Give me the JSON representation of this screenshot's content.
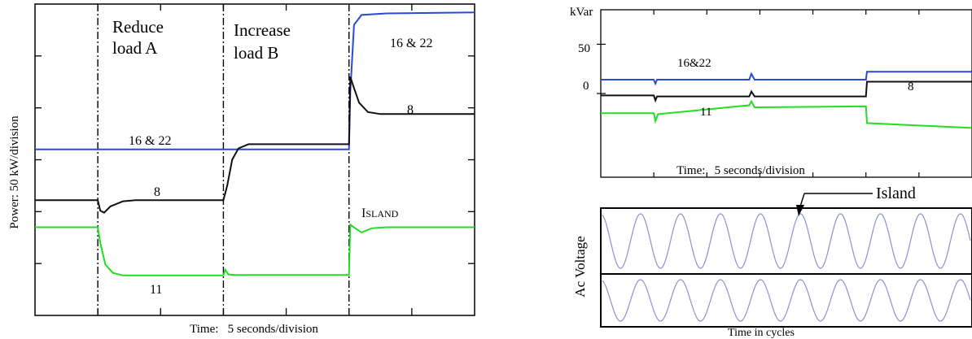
{
  "colors": {
    "blue": "#2a49d8",
    "black": "#111111",
    "green": "#22dd22",
    "wave": "#8f8fd6",
    "axis": "#000000"
  },
  "chart_data": [
    {
      "type": "line",
      "title": "",
      "xlabel": "Time:   5 seconds/division",
      "ylabel": "Power: 50 kW/division",
      "grid": false,
      "xlim": [
        0,
        35
      ],
      "ylim": [
        0,
        6
      ],
      "event_lines": [
        {
          "x": 5,
          "label_lines": [
            "Reduce",
            "load A"
          ]
        },
        {
          "x": 15,
          "label_lines": [
            "Increase",
            "load B"
          ]
        },
        {
          "x": 25,
          "label_lines": []
        }
      ],
      "annotations": [
        {
          "text": "ISLAND",
          "cap": "I",
          "rest": "SLAND"
        }
      ],
      "series": [
        {
          "name": "16 & 22",
          "color": "blue",
          "label_before": "16 & 22",
          "label_after": "16 & 22",
          "points": [
            [
              0,
              3.2
            ],
            [
              25,
              3.2
            ],
            [
              25.1,
              4.3
            ],
            [
              25.4,
              5.6
            ],
            [
              26,
              5.79
            ],
            [
              28,
              5.82
            ],
            [
              35,
              5.84
            ]
          ]
        },
        {
          "name": "8",
          "color": "black",
          "label": "8",
          "points": [
            [
              0,
              2.22
            ],
            [
              5,
              2.22
            ],
            [
              5.2,
              2.02
            ],
            [
              5.5,
              1.98
            ],
            [
              6,
              2.1
            ],
            [
              7,
              2.2
            ],
            [
              8,
              2.22
            ],
            [
              15,
              2.22
            ],
            [
              15.3,
              2.5
            ],
            [
              15.7,
              3.0
            ],
            [
              16.2,
              3.22
            ],
            [
              17,
              3.3
            ],
            [
              25,
              3.3
            ],
            [
              25.1,
              4.6
            ],
            [
              25.4,
              4.38
            ],
            [
              25.8,
              4.1
            ],
            [
              26.5,
              3.92
            ],
            [
              27.5,
              3.88
            ],
            [
              35,
              3.88
            ]
          ]
        },
        {
          "name": "11",
          "color": "green",
          "label": "11",
          "points": [
            [
              0,
              1.7
            ],
            [
              5,
              1.7
            ],
            [
              5.2,
              1.4
            ],
            [
              5.6,
              0.98
            ],
            [
              6.2,
              0.82
            ],
            [
              7,
              0.77
            ],
            [
              15,
              0.77
            ],
            [
              15.15,
              0.88
            ],
            [
              15.4,
              0.79
            ],
            [
              16,
              0.78
            ],
            [
              25,
              0.78
            ],
            [
              25.1,
              1.75
            ],
            [
              25.5,
              1.68
            ],
            [
              26,
              1.6
            ],
            [
              26.8,
              1.68
            ],
            [
              28,
              1.7
            ],
            [
              35,
              1.7
            ]
          ]
        }
      ]
    },
    {
      "type": "line",
      "title": "",
      "xlabel": "Time:   5 seconds/division",
      "ylabel": "kVar",
      "yticks": [
        "50",
        "0"
      ],
      "grid": false,
      "xlim": [
        0,
        35
      ],
      "ylim": [
        -85,
        85
      ],
      "series": [
        {
          "name": "16&22",
          "color": "blue",
          "label": "16&22",
          "points": [
            [
              0,
              14
            ],
            [
              5,
              14
            ],
            [
              5.15,
              10
            ],
            [
              5.3,
              14
            ],
            [
              14,
              14
            ],
            [
              14.2,
              20
            ],
            [
              14.5,
              14
            ],
            [
              25,
              14
            ],
            [
              25.1,
              22
            ],
            [
              35,
              22
            ]
          ]
        },
        {
          "name": "8",
          "color": "black",
          "label": "8",
          "points": [
            [
              0,
              -2
            ],
            [
              5,
              -2
            ],
            [
              5.15,
              -7
            ],
            [
              5.3,
              -3
            ],
            [
              14,
              -3
            ],
            [
              14.2,
              2
            ],
            [
              14.5,
              -3
            ],
            [
              25,
              -3
            ],
            [
              25.1,
              12
            ],
            [
              35,
              12
            ]
          ]
        },
        {
          "name": "11",
          "color": "green",
          "label": "11",
          "points": [
            [
              0,
              -20
            ],
            [
              5,
              -20
            ],
            [
              5.15,
              -28
            ],
            [
              5.4,
              -21
            ],
            [
              14,
              -12
            ],
            [
              14.2,
              -8
            ],
            [
              14.5,
              -14
            ],
            [
              25,
              -13
            ],
            [
              25.1,
              -30
            ],
            [
              35,
              -35
            ]
          ]
        }
      ]
    },
    {
      "type": "line",
      "title": "",
      "xlabel": "Time in cycles",
      "ylabel": "Ac Voltage",
      "annotations": [
        {
          "text": "Island"
        }
      ],
      "panels": [
        {
          "cycles": 9.2
        },
        {
          "cycles": 9.2
        }
      ]
    }
  ]
}
